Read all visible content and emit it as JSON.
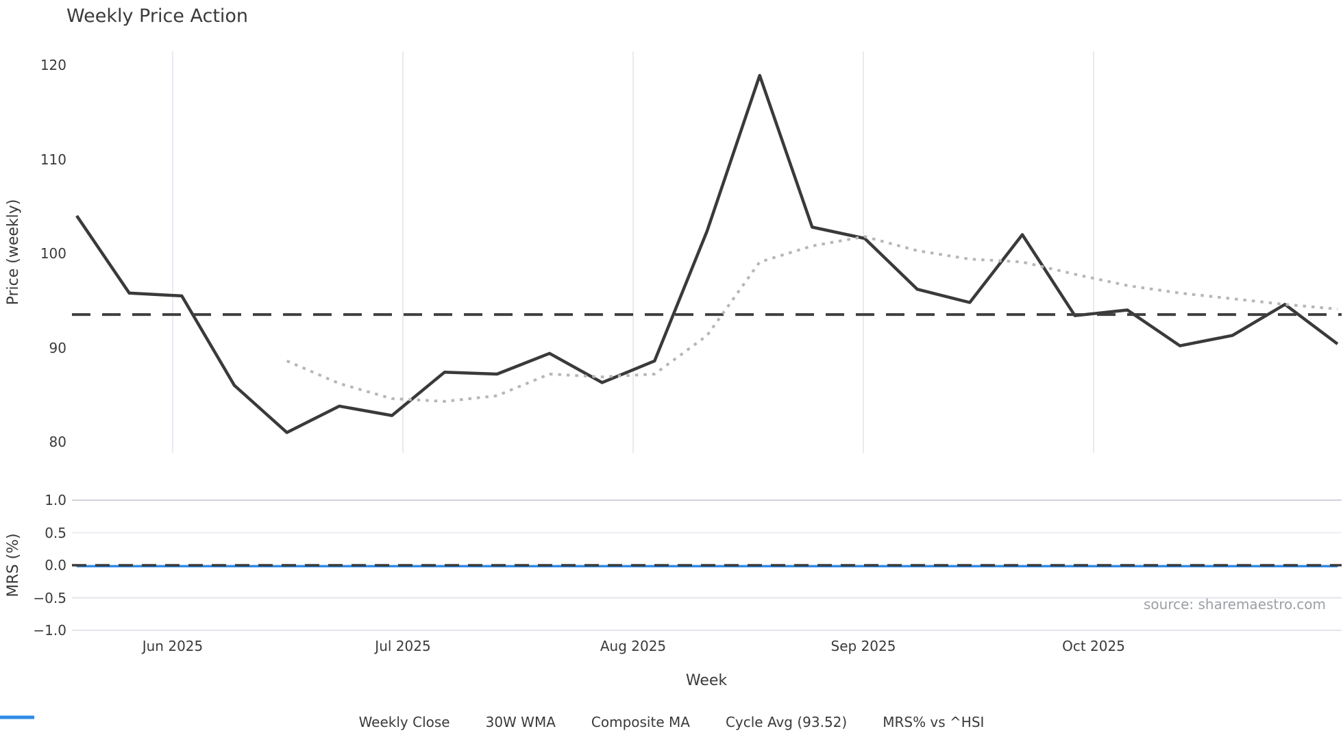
{
  "title": "Weekly Price Action",
  "source_note": "source: sharemaestro.com",
  "x_axis": {
    "label": "Week",
    "ticks": [
      "Jun 2025",
      "Jul 2025",
      "Aug 2025",
      "Sep 2025",
      "Oct 2025"
    ]
  },
  "price_axis": {
    "label": "Price (weekly)",
    "ticks": [
      "120",
      "110",
      "100",
      "90",
      "80"
    ],
    "tick_values": [
      120,
      110,
      100,
      90,
      80
    ]
  },
  "mrs_axis": {
    "label": "MRS (%)",
    "ticks": [
      "1.0",
      "0.5",
      "0.0",
      "−0.5",
      "−1.0"
    ],
    "tick_values": [
      1.0,
      0.5,
      0.0,
      -0.5,
      -1.0
    ]
  },
  "legend": {
    "items": [
      {
        "label": "Weekly Close",
        "swatch": "line",
        "color": "#3a3a3a"
      },
      {
        "label": "30W WMA",
        "swatch": "line",
        "color": "#d4a514"
      },
      {
        "label": "Composite MA",
        "swatch": "dotted",
        "color": "#b5b5b5"
      },
      {
        "label": "Cycle Avg (93.52)",
        "swatch": "dashed",
        "color": "#4a4a4a"
      },
      {
        "label": "MRS% vs ^HSI",
        "swatch": "line",
        "color": "#2e8be6"
      }
    ]
  },
  "colors": {
    "weekly_close": "#3a3a3a",
    "wma_30w": "#d4a514",
    "composite_ma": "#b6b6b6",
    "cycle_avg": "#3f3f3f",
    "mrs_line": "#2e8be6",
    "grid_vertical": "#e8eaf1",
    "grid_mrs_major": "#d0d2d9",
    "grid_mrs_minor": "#e2e4ea",
    "grid_mrs_faint": "#eceef5",
    "text": "#3a3a3a",
    "source_text": "#9aa0a6"
  },
  "chart_data": [
    {
      "type": "line",
      "title": "Weekly Price Action",
      "xlabel": "Week",
      "ylabel": "Price (weekly)",
      "x_unit": "week_index",
      "x": [
        0,
        1,
        2,
        3,
        4,
        5,
        6,
        7,
        8,
        9,
        10,
        11,
        12,
        13,
        14,
        15,
        16,
        17,
        18,
        19,
        20,
        21,
        22,
        23,
        24
      ],
      "x_ticks": [
        "Jun 2025",
        "Jul 2025",
        "Aug 2025",
        "Sep 2025",
        "Oct 2025"
      ],
      "ylim": [
        78.5,
        121.5
      ],
      "grid": "vertical-months-only",
      "legend_position": "bottom-center-shared",
      "series": [
        {
          "name": "Weekly Close",
          "style": "solid",
          "color": "#3a3a3a",
          "values": [
            104.0,
            95.8,
            95.5,
            86.0,
            81.0,
            83.8,
            82.8,
            87.4,
            87.2,
            89.4,
            86.3,
            88.6,
            102.4,
            118.9,
            102.8,
            101.6,
            96.2,
            94.8,
            102.0,
            93.4,
            94.0,
            90.2,
            91.3,
            94.6,
            90.4
          ]
        },
        {
          "name": "30W WMA",
          "style": "solid",
          "color": "#d4a514",
          "values": []
        },
        {
          "name": "Composite MA",
          "style": "dotted",
          "color": "#b6b6b6",
          "values": [
            null,
            null,
            null,
            null,
            88.6,
            86.2,
            84.6,
            84.3,
            84.9,
            87.2,
            86.9,
            87.2,
            91.3,
            99.1,
            100.8,
            101.8,
            100.3,
            99.4,
            99.1,
            97.8,
            96.6,
            95.8,
            95.2,
            94.6,
            94.1
          ]
        },
        {
          "name": "Cycle Avg (93.52)",
          "style": "dashed",
          "color": "#3f3f3f",
          "constant": 93.52
        }
      ]
    },
    {
      "type": "line",
      "ylabel": "MRS (%)",
      "x_unit": "week_index",
      "x": [
        0,
        1,
        2,
        3,
        4,
        5,
        6,
        7,
        8,
        9,
        10,
        11,
        12,
        13,
        14,
        15,
        16,
        17,
        18,
        19,
        20,
        21,
        22,
        23,
        24
      ],
      "ylim": [
        -1.19,
        1.19
      ],
      "grid": "horizontal-only",
      "series": [
        {
          "name": "MRS% vs ^HSI",
          "style": "solid",
          "color": "#2e8be6",
          "values": [
            0,
            0,
            0,
            0,
            0,
            0,
            0,
            0,
            0,
            0,
            0,
            0,
            0,
            0,
            0,
            0,
            0,
            0,
            0,
            0,
            0,
            0,
            0,
            0,
            0
          ]
        },
        {
          "name": "Zero line",
          "style": "dashed",
          "color": "#3a3a3a",
          "constant": 0.0
        }
      ]
    }
  ]
}
